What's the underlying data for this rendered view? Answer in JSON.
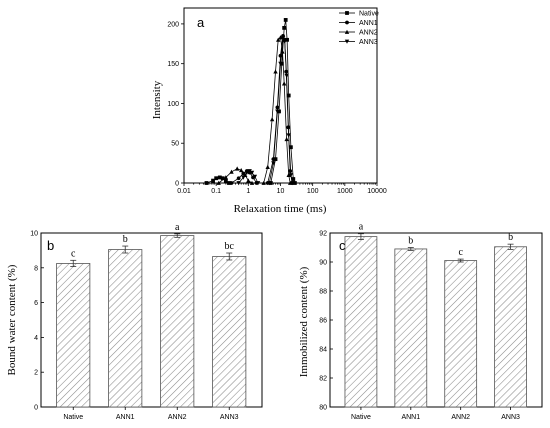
{
  "chart_data": [
    {
      "type": "line",
      "panel_label": "a",
      "xlabel": "Relaxation time (ms)",
      "ylabel": "Intensity",
      "x_scale": "log",
      "xlim": [
        0.01,
        10000
      ],
      "ylim": [
        0,
        220
      ],
      "x_ticks": [
        "0.01",
        "0.1",
        "1",
        "10",
        "100",
        "1000",
        "10000"
      ],
      "y_ticks": [
        "0",
        "50",
        "100",
        "150",
        "200"
      ],
      "legend_position": "top-right",
      "series": [
        {
          "name": "Native",
          "marker": "square",
          "points": [
            [
              0.05,
              0
            ],
            [
              0.08,
              3
            ],
            [
              0.1,
              6
            ],
            [
              0.13,
              7
            ],
            [
              0.16,
              6
            ],
            [
              0.2,
              3
            ],
            [
              0.25,
              0
            ],
            [
              5,
              0
            ],
            [
              7,
              30
            ],
            [
              9,
              90
            ],
            [
              11,
              150
            ],
            [
              13,
              195
            ],
            [
              14.5,
              205
            ],
            [
              16,
              180
            ],
            [
              18,
              110
            ],
            [
              21,
              45
            ],
            [
              25,
              5
            ],
            [
              28,
              0
            ]
          ]
        },
        {
          "name": "ANN1",
          "marker": "circle",
          "points": [
            [
              0.3,
              0
            ],
            [
              0.5,
              6
            ],
            [
              0.7,
              12
            ],
            [
              0.9,
              15
            ],
            [
              1.1,
              13
            ],
            [
              1.4,
              7
            ],
            [
              1.8,
              0
            ],
            [
              4,
              0
            ],
            [
              6,
              30
            ],
            [
              8,
              95
            ],
            [
              10,
              160
            ],
            [
              12,
              185
            ],
            [
              13.5,
              180
            ],
            [
              15,
              140
            ],
            [
              17.5,
              70
            ],
            [
              20,
              15
            ],
            [
              23,
              0
            ]
          ]
        },
        {
          "name": "ANN2",
          "marker": "triangle-up",
          "points": [
            [
              0.12,
              0
            ],
            [
              0.2,
              7
            ],
            [
              0.3,
              14
            ],
            [
              0.45,
              18
            ],
            [
              0.6,
              16
            ],
            [
              0.8,
              10
            ],
            [
              1,
              3
            ],
            [
              1.3,
              0
            ],
            [
              3,
              0
            ],
            [
              4,
              20
            ],
            [
              5.5,
              80
            ],
            [
              7,
              140
            ],
            [
              8.5,
              180
            ],
            [
              10,
              183
            ],
            [
              11.5,
              165
            ],
            [
              13,
              125
            ],
            [
              15.5,
              55
            ],
            [
              18,
              10
            ],
            [
              20,
              0
            ]
          ]
        },
        {
          "name": "ANN3",
          "marker": "triangle-down",
          "points": [
            [
              0.5,
              0
            ],
            [
              0.7,
              7
            ],
            [
              0.9,
              13
            ],
            [
              1.1,
              15
            ],
            [
              1.3,
              13
            ],
            [
              1.6,
              8
            ],
            [
              2,
              0
            ],
            [
              4.5,
              0
            ],
            [
              6,
              25
            ],
            [
              8,
              90
            ],
            [
              10,
              150
            ],
            [
              12,
              182
            ],
            [
              13.5,
              178
            ],
            [
              15.5,
              135
            ],
            [
              18,
              60
            ],
            [
              21,
              10
            ],
            [
              24,
              0
            ]
          ]
        }
      ]
    },
    {
      "type": "bar",
      "panel_label": "b",
      "xlabel": "",
      "ylabel": "Bound water content (%)",
      "ylim": [
        0,
        10
      ],
      "y_ticks": [
        "0",
        "2",
        "4",
        "6",
        "8",
        "10"
      ],
      "categories": [
        "Native",
        "ANN1",
        "ANN2",
        "ANN3"
      ],
      "values": [
        8.25,
        9.05,
        9.85,
        8.65
      ],
      "errors": [
        0.18,
        0.2,
        0.1,
        0.2
      ],
      "significance": [
        "c",
        "b",
        "a",
        "bc"
      ]
    },
    {
      "type": "bar",
      "panel_label": "c",
      "xlabel": "",
      "ylabel": "Immobilized content (%)",
      "ylim": [
        80,
        92
      ],
      "y_ticks": [
        "80",
        "82",
        "84",
        "86",
        "88",
        "90",
        "92"
      ],
      "categories": [
        "Native",
        "ANN1",
        "ANN2",
        "ANN3"
      ],
      "values": [
        91.75,
        90.9,
        90.1,
        91.05
      ],
      "errors": [
        0.2,
        0.1,
        0.1,
        0.18
      ],
      "significance": [
        "a",
        "b",
        "c",
        "b"
      ]
    }
  ]
}
